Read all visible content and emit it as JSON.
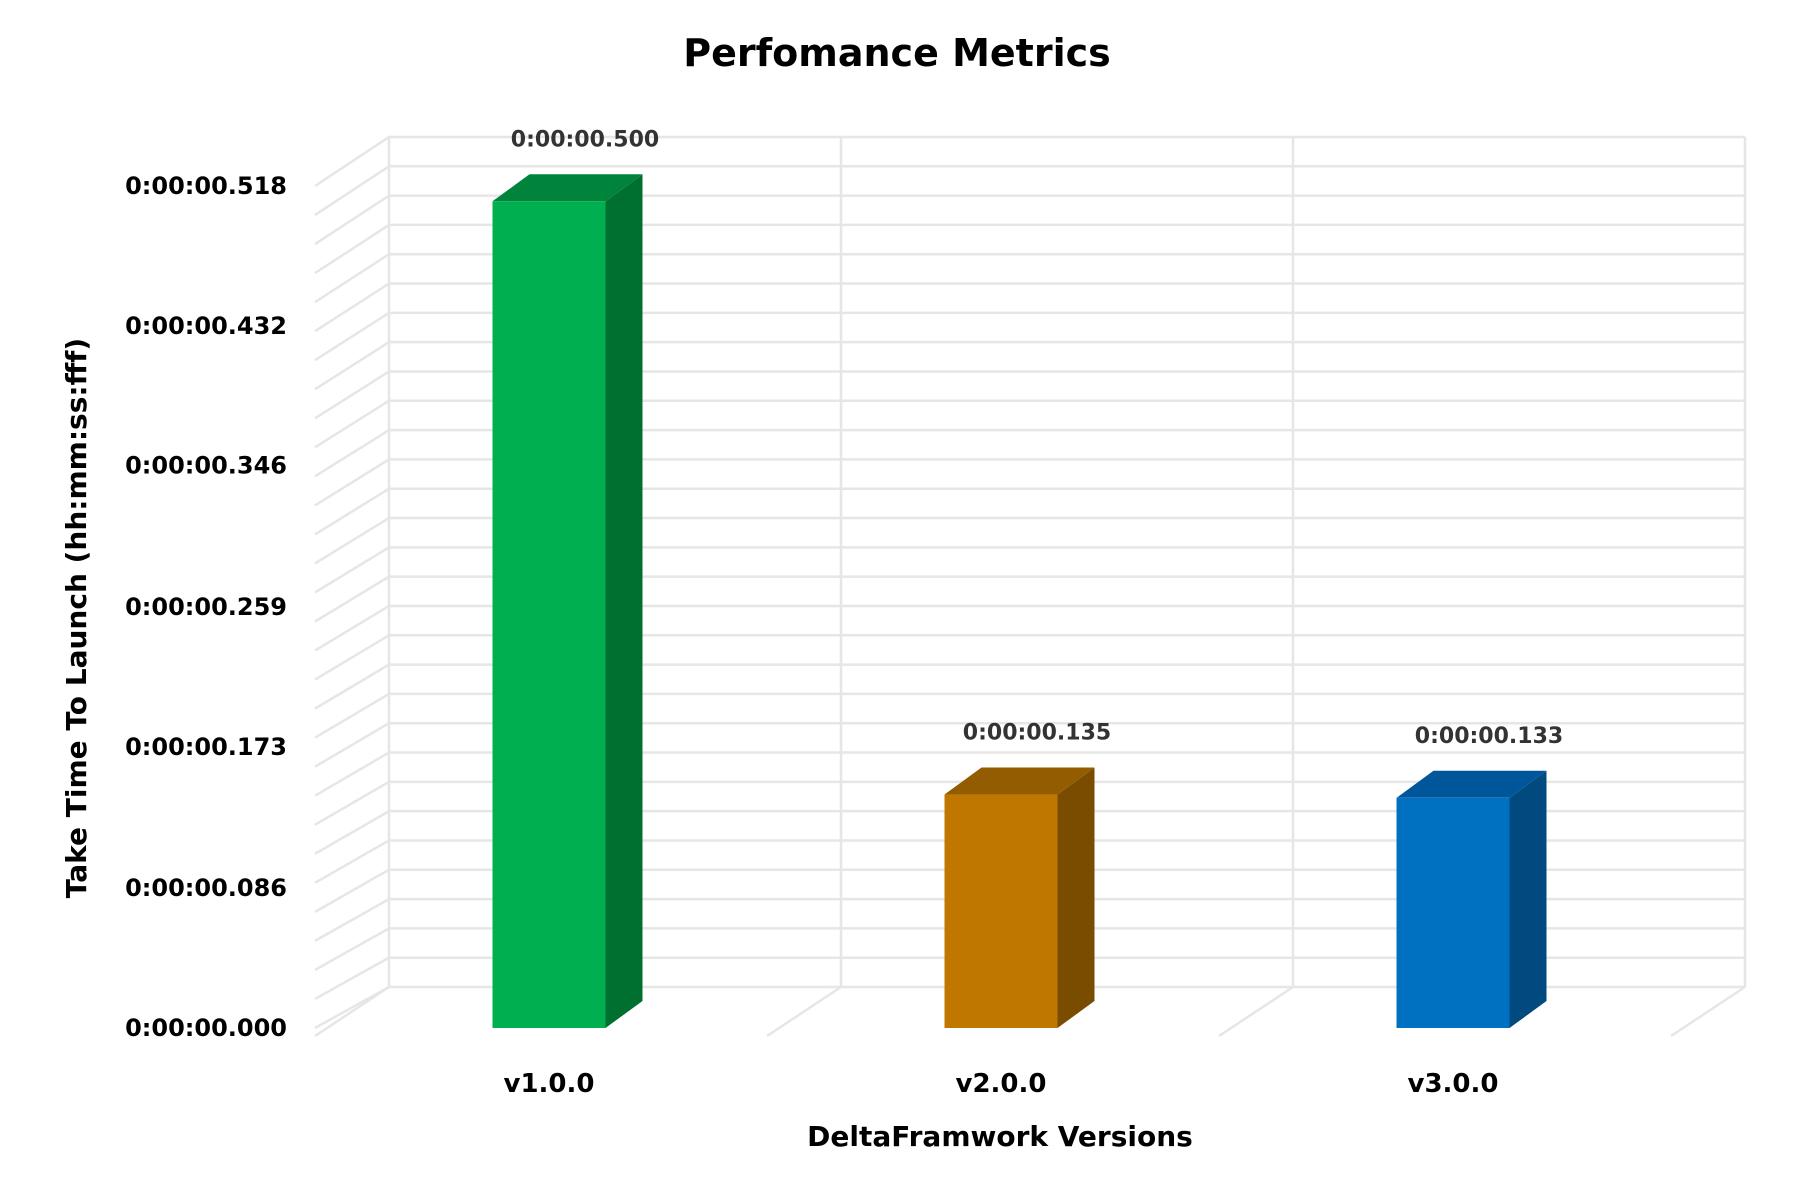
{
  "chart_data": {
    "type": "bar",
    "title": "Perfomance Metrics",
    "xlabel": "DeltaFramwork Versions",
    "ylabel": "Take Time To Launch (hh:mm:ss:fff)",
    "categories": [
      "v1.0.0",
      "v2.0.0",
      "v3.0.0"
    ],
    "values": [
      0.5,
      0.135,
      0.133
    ],
    "value_labels": [
      "0:00:00.500",
      "0:00:00.135",
      "0:00:00.133"
    ],
    "ylim": [
      0,
      0.518
    ],
    "yticks": [
      {
        "value": 0.0,
        "label": "0:00:00.000"
      },
      {
        "value": 0.086,
        "label": "0:00:00.086"
      },
      {
        "value": 0.173,
        "label": "0:00:00.173"
      },
      {
        "value": 0.259,
        "label": "0:00:00.259"
      },
      {
        "value": 0.346,
        "label": "0:00:00.346"
      },
      {
        "value": 0.432,
        "label": "0:00:00.432"
      },
      {
        "value": 0.518,
        "label": "0:00:00.518"
      }
    ],
    "grid": true,
    "style": "3d-column",
    "colors": [
      {
        "front": "#00b050",
        "side": "#007030",
        "top": "#00843c"
      },
      {
        "front": "#bf7700",
        "side": "#7a4c00",
        "top": "#935c00"
      },
      {
        "front": "#0070c0",
        "side": "#004a80",
        "top": "#00569a"
      }
    ]
  }
}
